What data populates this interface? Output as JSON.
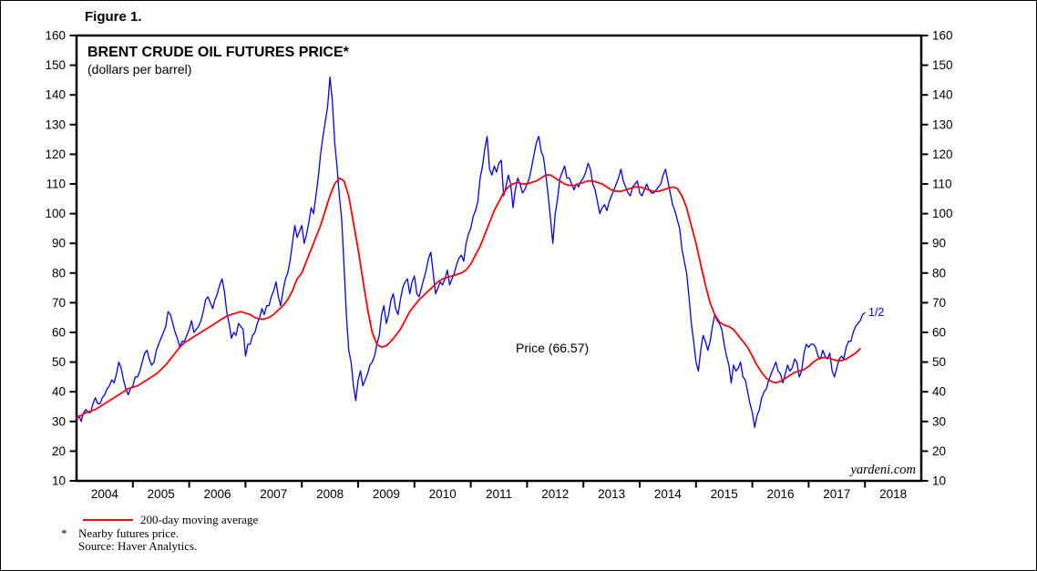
{
  "figure_label": "Figure 1.",
  "chart_data": {
    "type": "line",
    "title": "BRENT CRUDE OIL FUTURES PRICE*",
    "subtitle": "(dollars per barrel)",
    "xlim": [
      2004,
      2019
    ],
    "ylim": [
      10,
      160
    ],
    "y_ticks": [
      10,
      20,
      30,
      40,
      50,
      60,
      70,
      80,
      90,
      100,
      110,
      120,
      130,
      140,
      150,
      160
    ],
    "x_tick_years": [
      2005,
      2006,
      2007,
      2008,
      2009,
      2010,
      2011,
      2012,
      2013,
      2014,
      2015,
      2016,
      2017,
      2018
    ],
    "x_labels": [
      "2004",
      "2005",
      "2006",
      "2007",
      "2008",
      "2009",
      "2010",
      "2011",
      "2012",
      "2013",
      "2014",
      "2015",
      "2016",
      "2017",
      "2018"
    ],
    "grid": false,
    "annotations": {
      "price_label": "Price (66.57)",
      "price_label_pos": [
        2011.8,
        54
      ],
      "endpoint_label": "1/2",
      "endpoint_pos": [
        2018.1,
        67
      ],
      "watermark": "yardeni.com"
    },
    "legend": [
      {
        "label": "200-day moving average",
        "color": "#ff0000"
      }
    ],
    "series": [
      {
        "name": "Price",
        "color": "#0000ee",
        "x_start": 2004.0,
        "x_step": 0.041667,
        "values": [
          30,
          32,
          30,
          33,
          34,
          33,
          33,
          36,
          38,
          36,
          36,
          38,
          39,
          41,
          42,
          44,
          43,
          46,
          50,
          48,
          44,
          41,
          39,
          41,
          42,
          45,
          45,
          47,
          50,
          53,
          54,
          51,
          49,
          50,
          54,
          56,
          58,
          60,
          62,
          67,
          66,
          63,
          60,
          58,
          55,
          57,
          57,
          59,
          61,
          64,
          60,
          61,
          62,
          64,
          67,
          71,
          72,
          70,
          68,
          71,
          73,
          76,
          78,
          74,
          67,
          63,
          58,
          60,
          59,
          63,
          62,
          61,
          52,
          56,
          56,
          59,
          60,
          63,
          65,
          68,
          66,
          69,
          69,
          72,
          74,
          77,
          72,
          69,
          74,
          78,
          80,
          84,
          90,
          96,
          92,
          94,
          96,
          90,
          93,
          97,
          102,
          100,
          106,
          112,
          120,
          126,
          131,
          136,
          146,
          138,
          124,
          116,
          106,
          98,
          82,
          66,
          54,
          50,
          42,
          37,
          44,
          47,
          42,
          44,
          46,
          49,
          50,
          52,
          56,
          59,
          66,
          69,
          63,
          66,
          71,
          73,
          68,
          66,
          71,
          75,
          77,
          78,
          73,
          77,
          79,
          73,
          72,
          75,
          78,
          81,
          85,
          87,
          80,
          73,
          75,
          77,
          76,
          78,
          81,
          76,
          78,
          80,
          83,
          85,
          86,
          84,
          90,
          93,
          95,
          99,
          101,
          104,
          112,
          116,
          122,
          126,
          115,
          113,
          116,
          114,
          117,
          118,
          106,
          109,
          113,
          110,
          102,
          108,
          112,
          110,
          107,
          108,
          110,
          112,
          116,
          120,
          124,
          126,
          121,
          119,
          113,
          106,
          98,
          90,
          100,
          105,
          112,
          114,
          116,
          112,
          112,
          110,
          108,
          110,
          109,
          111,
          112,
          114,
          117,
          115,
          110,
          108,
          104,
          100,
          102,
          103,
          101,
          104,
          106,
          108,
          110,
          112,
          115,
          111,
          109,
          107,
          106,
          109,
          110,
          111,
          107,
          106,
          108,
          110,
          108,
          107,
          107,
          108,
          109,
          110,
          113,
          115,
          111,
          107,
          103,
          101,
          98,
          95,
          88,
          84,
          80,
          72,
          63,
          57,
          50,
          47,
          54,
          59,
          57,
          54,
          57,
          62,
          66,
          64,
          63,
          61,
          56,
          52,
          49,
          43,
          49,
          47,
          48,
          50,
          45,
          44,
          40,
          36,
          33,
          28,
          32,
          34,
          38,
          40,
          41,
          44,
          46,
          48,
          50,
          47,
          46,
          43,
          46,
          49,
          47,
          48,
          51,
          50,
          45,
          47,
          53,
          56,
          55,
          56,
          56,
          55,
          52,
          51,
          54,
          52,
          51,
          53,
          47,
          45,
          48,
          51,
          52,
          51,
          55,
          57,
          57,
          60,
          62,
          63,
          64,
          66,
          66.57
        ]
      },
      {
        "name": "200-day moving average",
        "color": "#ff0000",
        "x_start": 2004.0,
        "x_step": 0.083333,
        "values": [
          31,
          32,
          33,
          33.5,
          34,
          35,
          36,
          37,
          38,
          39,
          40,
          41,
          41.5,
          42,
          43,
          44,
          45,
          46,
          47.5,
          49,
          51,
          53,
          55,
          56.5,
          57.5,
          58.5,
          59.5,
          60.5,
          61.5,
          62.5,
          63.5,
          64.5,
          65.5,
          66,
          66.5,
          67,
          66.5,
          66,
          65,
          64.5,
          64.5,
          65,
          66,
          67.5,
          69,
          71,
          74,
          78,
          80,
          84,
          88,
          92,
          96,
          101,
          106,
          110,
          112,
          111,
          106,
          97,
          88,
          78,
          68,
          60,
          56,
          55,
          55.5,
          57,
          59,
          61,
          64,
          67,
          69,
          71,
          72.5,
          74,
          75.5,
          77,
          78,
          78.5,
          79,
          79.5,
          80,
          81,
          83,
          86,
          89,
          93,
          97,
          101,
          104,
          107,
          109,
          110,
          110.5,
          110,
          110,
          110.5,
          111,
          112,
          113,
          113,
          112,
          111,
          110,
          109.5,
          109.5,
          110,
          110.5,
          111,
          111,
          110.5,
          110,
          109,
          108,
          107.5,
          107.5,
          108,
          108.5,
          109,
          109,
          108.5,
          108,
          107.5,
          107.5,
          108,
          108.5,
          109,
          108.5,
          106,
          102,
          96,
          90,
          83,
          76,
          70,
          66,
          63.5,
          62.5,
          62,
          61,
          59,
          57,
          55,
          52,
          49,
          46.5,
          44.5,
          43.5,
          43,
          43.5,
          44.5,
          45.5,
          46.5,
          47,
          47.5,
          48.5,
          50,
          51,
          51.5,
          51.5,
          51,
          50.5,
          50.5,
          51,
          52,
          53,
          54.5
        ]
      }
    ]
  },
  "footnotes": {
    "asterisk": "*",
    "line1": "Nearby futures price.",
    "line2": "Source: Haver Analytics."
  }
}
